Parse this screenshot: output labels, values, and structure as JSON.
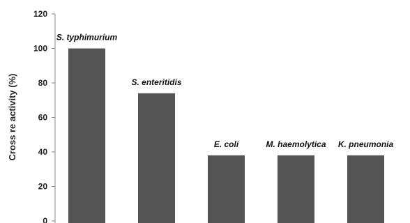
{
  "chart_data": {
    "type": "bar",
    "title": "",
    "xlabel": "",
    "ylabel": "Cross re activity (%)",
    "ylim": [
      0,
      120
    ],
    "yticks": [
      0,
      20,
      40,
      60,
      80,
      100,
      120
    ],
    "categories": [
      "S. typhimurium",
      "S. enteritidis",
      "E. coli",
      "M. haemolytica",
      "K. pneumonia"
    ],
    "values": [
      100,
      74,
      38,
      38,
      38
    ],
    "grid": false,
    "bar_color": "#555555",
    "axis_color": "#888888"
  }
}
